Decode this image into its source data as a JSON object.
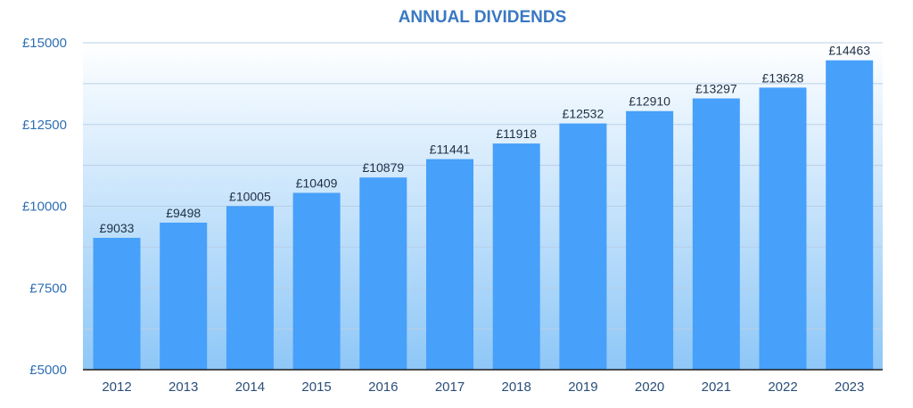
{
  "chart_data": {
    "type": "bar",
    "title": "ANNUAL DIVIDENDS",
    "xlabel": "",
    "ylabel": "",
    "categories": [
      "2012",
      "2013",
      "2014",
      "2015",
      "2016",
      "2017",
      "2018",
      "2019",
      "2020",
      "2021",
      "2022",
      "2023"
    ],
    "values": [
      9033,
      9498,
      10005,
      10409,
      10879,
      11441,
      11918,
      12532,
      12910,
      13297,
      13628,
      14463
    ],
    "data_labels": [
      "£9033",
      "£9498",
      "£10005",
      "£10409",
      "£10879",
      "£11441",
      "£11918",
      "£12532",
      "£12910",
      "£13297",
      "£13628",
      "£14463"
    ],
    "ylim": [
      5000,
      15000
    ],
    "y_ticks": [
      5000,
      7500,
      10000,
      12500,
      15000
    ],
    "y_tick_labels": [
      "£5000",
      "£7500",
      "£10000",
      "£12500",
      "£15000"
    ],
    "grid": true,
    "legend": "none",
    "colors": {
      "bar": "#47a0fa",
      "title": "#3a78c2",
      "gradient_top": "#ffffff",
      "gradient_bottom": "#8ec7f7",
      "gridline": "#b8cfe6",
      "axis": "#1b1b1b"
    }
  }
}
